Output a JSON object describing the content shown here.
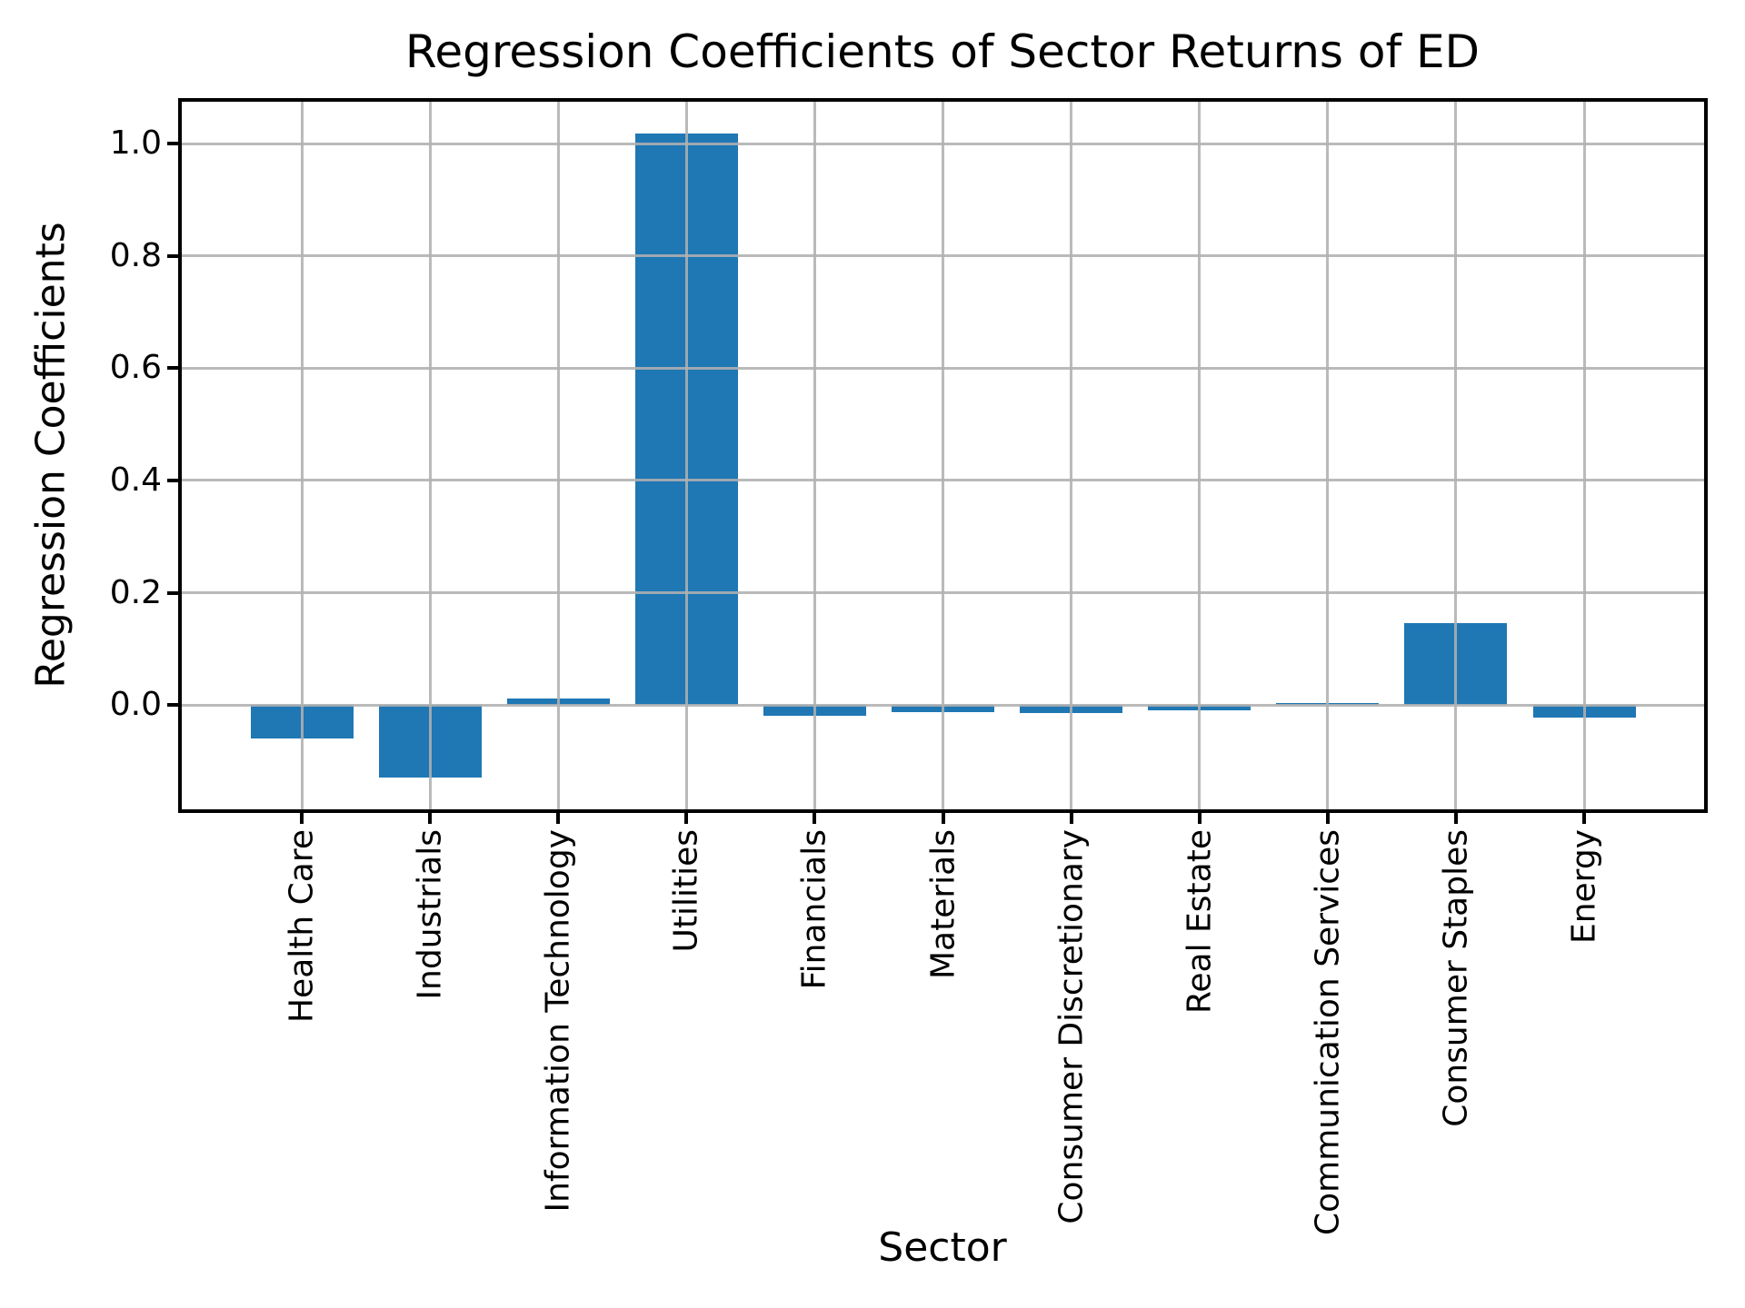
{
  "chart_data": {
    "type": "bar",
    "title": "Regression Coefficients of Sector Returns of ED",
    "xlabel": "Sector",
    "ylabel": "Regression Coefficients",
    "categories": [
      "Health Care",
      "Industrials",
      "Information Technology",
      "Utilities",
      "Financials",
      "Materials",
      "Consumer Discretionary",
      "Real Estate",
      "Communication Services",
      "Consumer Staples",
      "Energy"
    ],
    "values": [
      -0.06,
      -0.129,
      0.011,
      1.018,
      -0.019,
      -0.012,
      -0.015,
      -0.009,
      0.004,
      0.146,
      -0.023
    ],
    "yticks": [
      0.0,
      0.2,
      0.4,
      0.6,
      0.8,
      1.0
    ],
    "ytick_labels": [
      "0.0",
      "0.2",
      "0.4",
      "0.6",
      "0.8",
      "1.0"
    ],
    "ylim": [
      -0.186,
      1.075
    ],
    "grid": true,
    "grid_over_bars": true,
    "legend": null,
    "bar_color": "#1f77b4",
    "grid_color": "#b0b0b0",
    "axis_color": "#000000",
    "background_color": "#ffffff"
  }
}
